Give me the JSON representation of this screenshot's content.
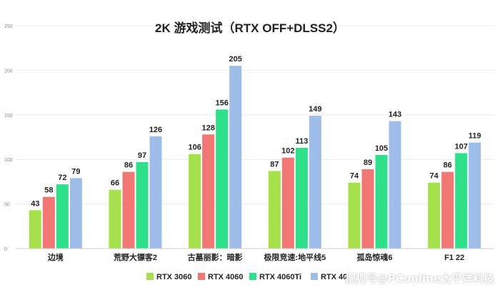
{
  "chart_data": {
    "type": "bar",
    "title": "2K 游戏测试（RTX OFF+DLSS2）",
    "categories": [
      "边境",
      "荒野大镖客2",
      "古墓丽影：暗影",
      "极限竞速:地平线5",
      "孤岛惊魂6",
      "F1 22"
    ],
    "series": [
      {
        "name": "RTX 3060",
        "color": "#a6e04a",
        "values": [
          43,
          66,
          106,
          87,
          74,
          74
        ]
      },
      {
        "name": "RTX 4060",
        "color": "#f07774",
        "values": [
          58,
          86,
          128,
          102,
          89,
          86
        ]
      },
      {
        "name": "RTX 4060Ti",
        "color": "#2fe08a",
        "values": [
          72,
          97,
          156,
          113,
          105,
          107
        ]
      },
      {
        "name": "RTX 40",
        "color": "#9fbdea",
        "values": [
          79,
          126,
          205,
          149,
          143,
          119
        ]
      }
    ],
    "y_ticks": [
      "0",
      "50",
      "100",
      "150",
      "200",
      "250"
    ],
    "ylim": [
      0,
      250
    ],
    "grid": true,
    "legend_position": "bottom"
  },
  "watermark": "搜狐号@PConline太平洋科技"
}
